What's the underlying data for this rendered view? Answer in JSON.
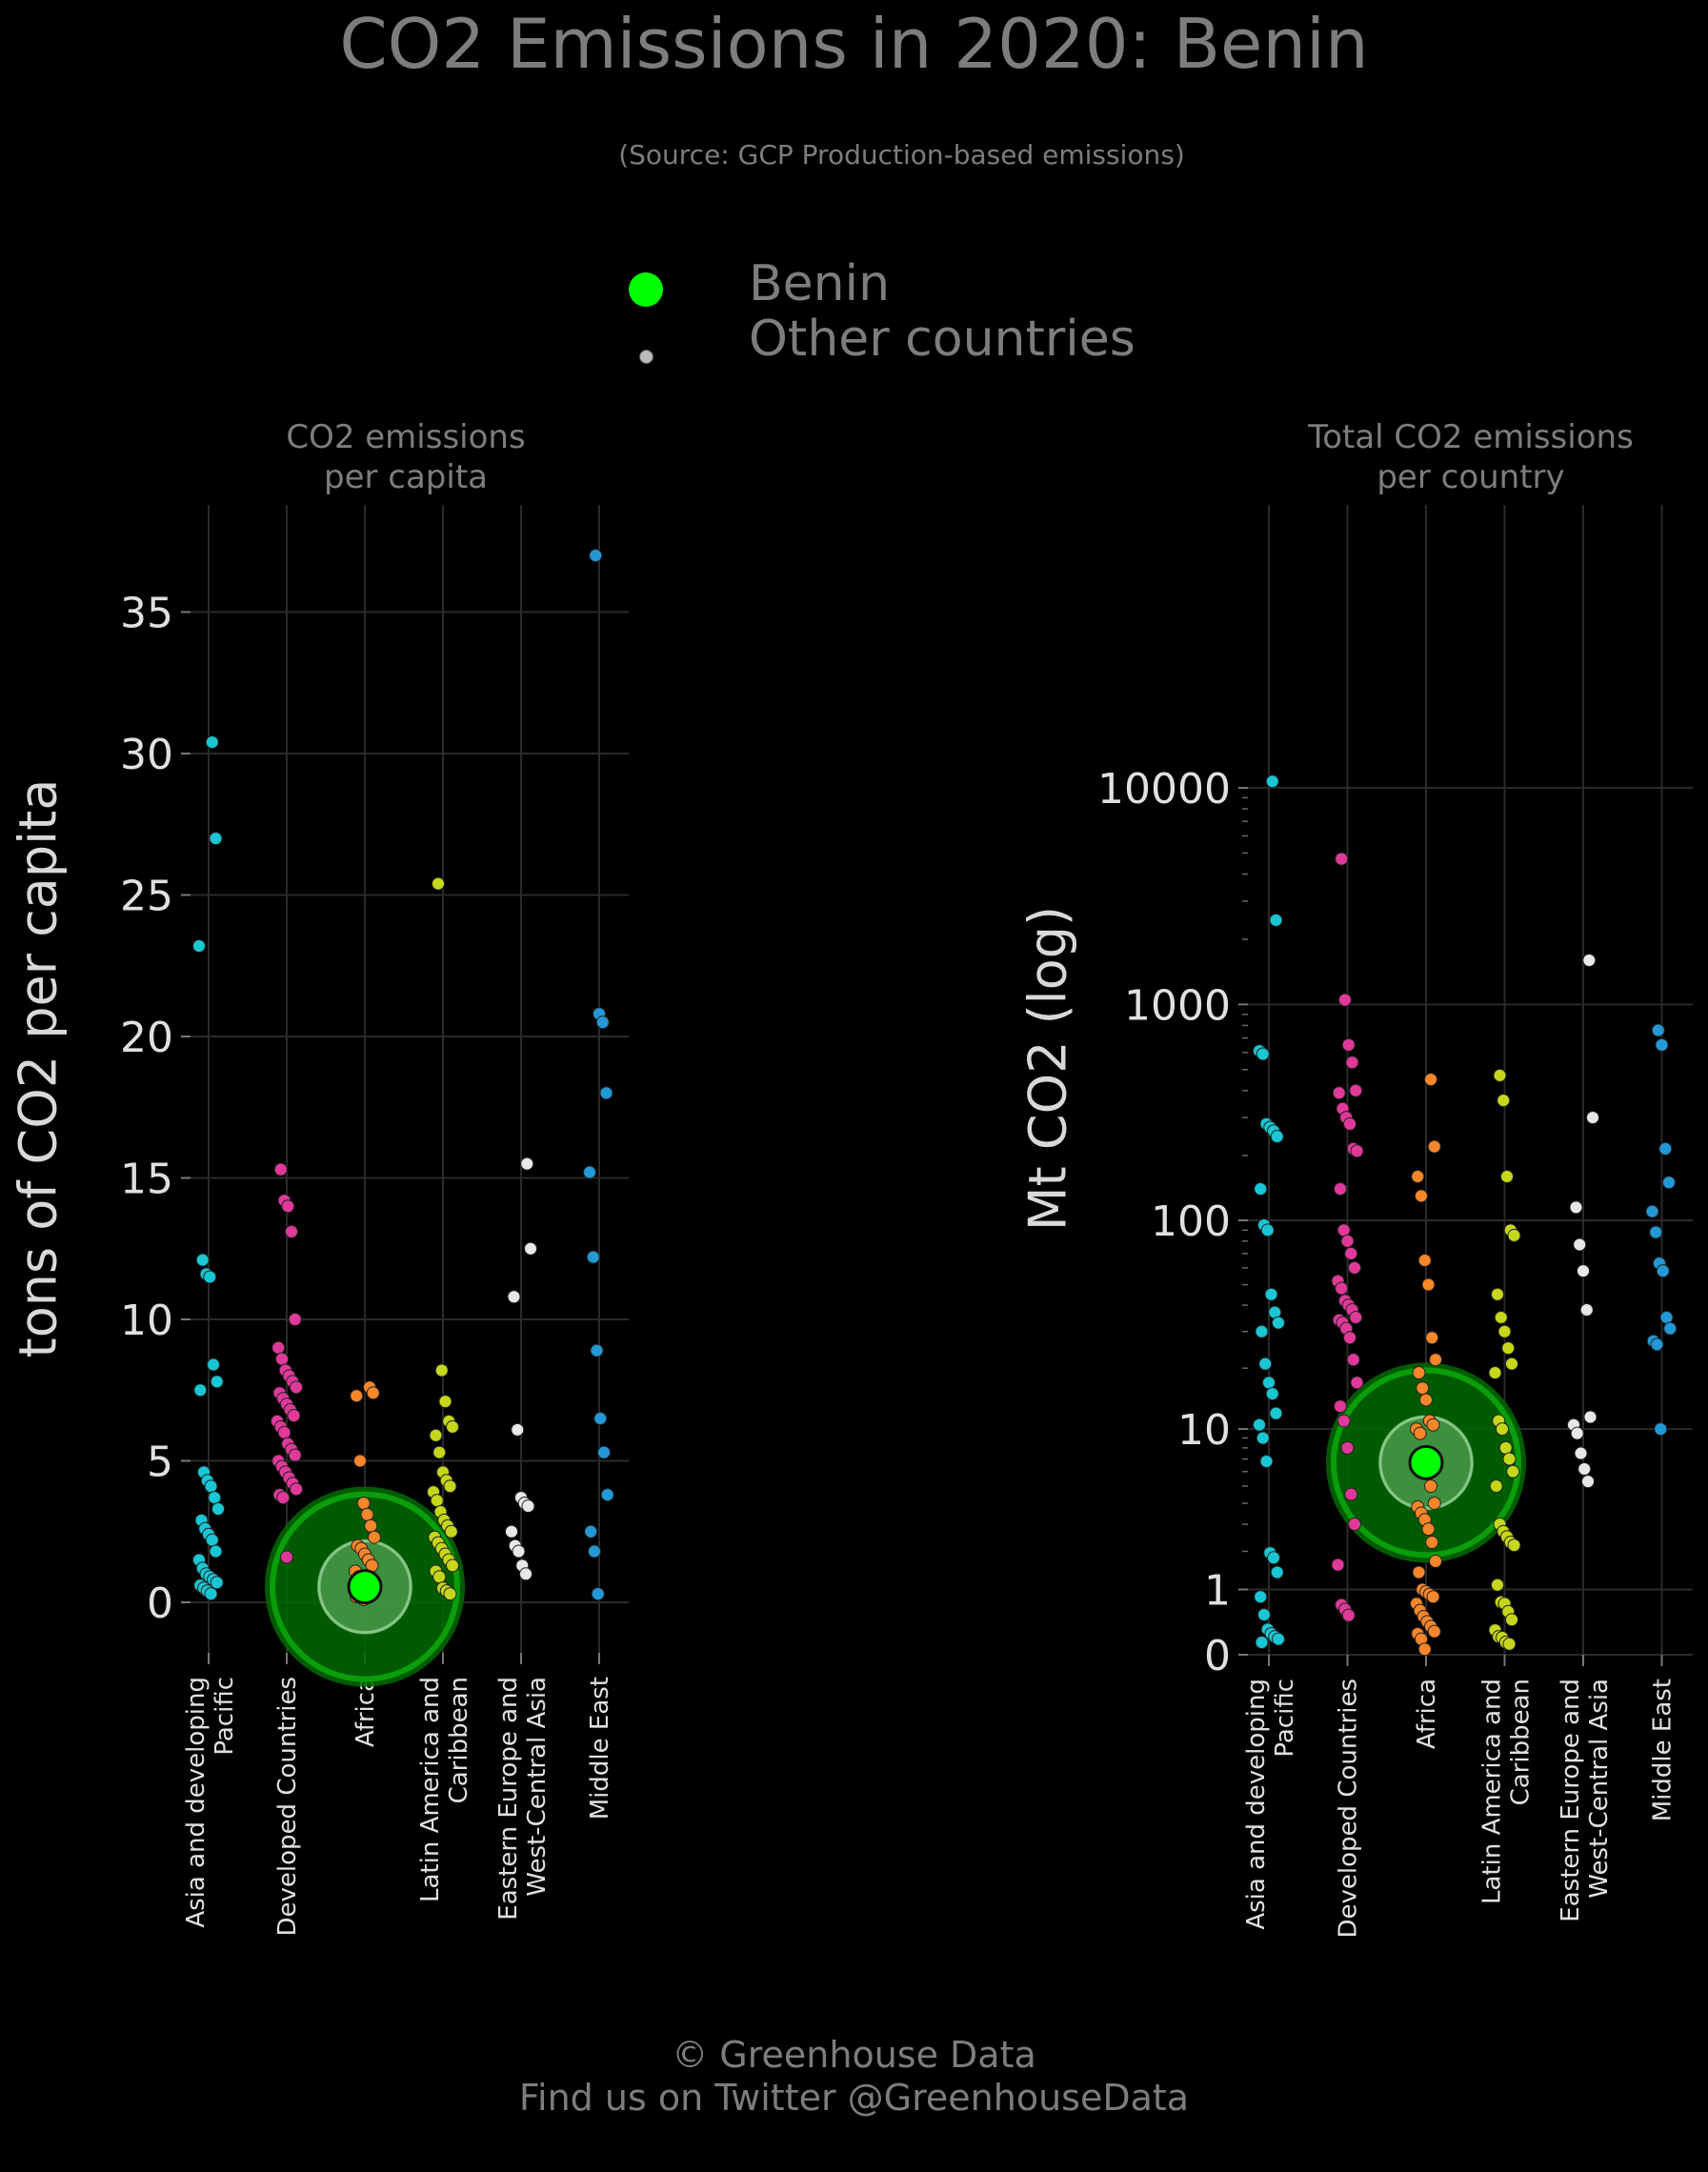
{
  "header": {
    "title": "CO2 Emissions in 2020: Benin",
    "subtitle": "(Source: GCP Production-based emissions)"
  },
  "legend": {
    "items": [
      {
        "label": "Benin",
        "color": "#00ff00"
      },
      {
        "label": "Other countries",
        "color": "#bbbbbb"
      }
    ]
  },
  "footer": {
    "line1": "© Greenhouse Data",
    "line2": "Find us on Twitter @GreenhouseData"
  },
  "colors": {
    "Asia and developing Pacific": "#19c6d4",
    "Developed Countries": "#e0399a",
    "Africa": "#f7862a",
    "Latin America and Caribbean": "#c6d61a",
    "Eastern Europe and West-Central Asia": "#e8e8e8",
    "Middle East": "#2398d6",
    "highlight": "#00ff00",
    "halo": "#006b00"
  },
  "chart_data": [
    {
      "type": "scatter",
      "title": "CO2 emissions\nper capita",
      "ylabel": "tons of CO2 per capita",
      "categories": [
        "Asia and developing Pacific",
        "Developed Countries",
        "Africa",
        "Latin America and Caribbean",
        "Eastern Europe and West-Central Asia",
        "Middle East"
      ],
      "tick_labels": [
        "Asia and developing\nPacific",
        "Developed Countries",
        "Africa",
        "Latin America and\nCaribbean",
        "Eastern Europe and\nWest-Central Asia",
        "Middle East"
      ],
      "yticks": [
        0,
        5,
        10,
        15,
        20,
        25,
        30,
        35
      ],
      "ylim": [
        -1.8,
        38.8
      ],
      "scale": "linear",
      "grid": true,
      "highlight": {
        "label": "Benin",
        "category": "Africa",
        "value": 0.55
      },
      "series": [
        {
          "category": "Asia and developing Pacific",
          "values": [
            30.4,
            27.0,
            23.2,
            12.1,
            11.6,
            11.5,
            8.4,
            7.8,
            7.5,
            4.6,
            4.3,
            4.1,
            3.7,
            3.3,
            2.9,
            2.6,
            2.4,
            2.2,
            1.8,
            1.5,
            1.2,
            1.0,
            0.9,
            0.8,
            0.7,
            0.6,
            0.5,
            0.4,
            0.3
          ]
        },
        {
          "category": "Developed Countries",
          "values": [
            15.3,
            14.2,
            14.0,
            13.1,
            10.0,
            9.0,
            8.6,
            8.2,
            8.0,
            7.8,
            7.6,
            7.4,
            7.2,
            7.0,
            6.8,
            6.6,
            6.4,
            6.2,
            6.0,
            5.6,
            5.4,
            5.2,
            5.0,
            4.8,
            4.6,
            4.4,
            4.2,
            4.0,
            3.8,
            3.7,
            1.6
          ]
        },
        {
          "category": "Africa",
          "values": [
            7.6,
            7.4,
            7.3,
            5.0,
            3.5,
            3.1,
            2.7,
            2.3,
            2.0,
            1.9,
            1.7,
            1.5,
            1.3,
            1.1,
            0.9,
            0.7,
            0.5,
            0.4,
            0.3,
            0.2,
            0.2,
            0.1
          ]
        },
        {
          "category": "Latin America and Caribbean",
          "values": [
            25.4,
            8.2,
            7.1,
            6.4,
            6.2,
            5.9,
            5.3,
            4.6,
            4.3,
            4.1,
            3.9,
            3.6,
            3.2,
            2.9,
            2.7,
            2.5,
            2.3,
            2.1,
            1.9,
            1.7,
            1.5,
            1.3,
            1.1,
            0.9,
            0.5,
            0.4,
            0.3
          ]
        },
        {
          "category": "Eastern Europe and West-Central Asia",
          "values": [
            15.5,
            12.5,
            10.8,
            6.1,
            3.7,
            3.5,
            3.4,
            2.5,
            2.0,
            1.8,
            1.3,
            1.0
          ]
        },
        {
          "category": "Middle East",
          "values": [
            37.0,
            20.8,
            20.5,
            18.0,
            15.2,
            12.2,
            8.9,
            6.5,
            5.3,
            3.8,
            2.5,
            1.8,
            0.3
          ]
        }
      ]
    },
    {
      "type": "scatter",
      "title": "Total CO2 emissions\nper country",
      "ylabel": "Mt CO2 (log)",
      "categories": [
        "Asia and developing Pacific",
        "Developed Countries",
        "Africa",
        "Latin America and Caribbean",
        "Eastern Europe and West-Central Asia",
        "Middle East"
      ],
      "tick_labels": [
        "Asia and developing\nPacific",
        "Developed Countries",
        "Africa",
        "Latin America and\nCaribbean",
        "Eastern Europe and\nWest-Central Asia",
        "Middle East"
      ],
      "yticks": [
        0,
        1,
        10,
        100,
        1000,
        10000
      ],
      "ylim": [
        0,
        20000
      ],
      "scale": "log",
      "grid": true,
      "highlight": {
        "label": "Benin",
        "category": "Africa",
        "value": 6.7
      },
      "series": [
        {
          "category": "Asia and developing Pacific",
          "values": [
            10700,
            2450,
            610,
            590,
            280,
            270,
            260,
            245,
            140,
            95,
            90,
            45,
            37,
            33,
            30,
            21,
            17,
            15,
            12,
            10.5,
            9,
            6.8,
            1.95,
            1.8,
            1.4,
            0.85,
            0.53,
            0.31,
            0.25,
            0.21,
            0.18,
            0.14
          ]
        },
        {
          "category": "Developed Countries",
          "values": [
            4700,
            1050,
            650,
            540,
            400,
            390,
            330,
            300,
            280,
            215,
            210,
            140,
            90,
            80,
            70,
            60,
            52,
            48,
            42,
            40,
            38,
            35,
            34,
            33,
            31,
            28,
            22,
            17,
            13,
            11,
            8,
            4.5,
            3,
            1.6,
            0.7,
            0.62,
            0.52
          ]
        },
        {
          "category": "Africa",
          "values": [
            450,
            220,
            160,
            130,
            65,
            50,
            28,
            22,
            19,
            16,
            14,
            11,
            10.5,
            10,
            9.5,
            7.5,
            6.5,
            5,
            4,
            3.8,
            3.5,
            3.2,
            2.8,
            2.3,
            1.7,
            1.4,
            1.0,
            0.95,
            0.9,
            0.85,
            0.72,
            0.6,
            0.5,
            0.42,
            0.35,
            0.28,
            0.25,
            0.18,
            0.06
          ]
        },
        {
          "category": "Latin America and Caribbean",
          "values": [
            470,
            360,
            160,
            90,
            85,
            45,
            35,
            30,
            25,
            21,
            19,
            11,
            10,
            8,
            7,
            6,
            5,
            3,
            2.7,
            2.5,
            2.3,
            2.2,
            1.1,
            0.75,
            0.72,
            0.58,
            0.45,
            0.3,
            0.21,
            0.2,
            0.14,
            0.12
          ]
        },
        {
          "category": "Eastern Europe and West-Central Asia",
          "values": [
            1600,
            300,
            115,
            77,
            58,
            38,
            11.5,
            10.5,
            9.5,
            7.5,
            6.2,
            5.3
          ]
        },
        {
          "category": "Middle East",
          "values": [
            760,
            650,
            215,
            150,
            110,
            88,
            63,
            58,
            35,
            31,
            27,
            26,
            10
          ]
        }
      ]
    }
  ]
}
